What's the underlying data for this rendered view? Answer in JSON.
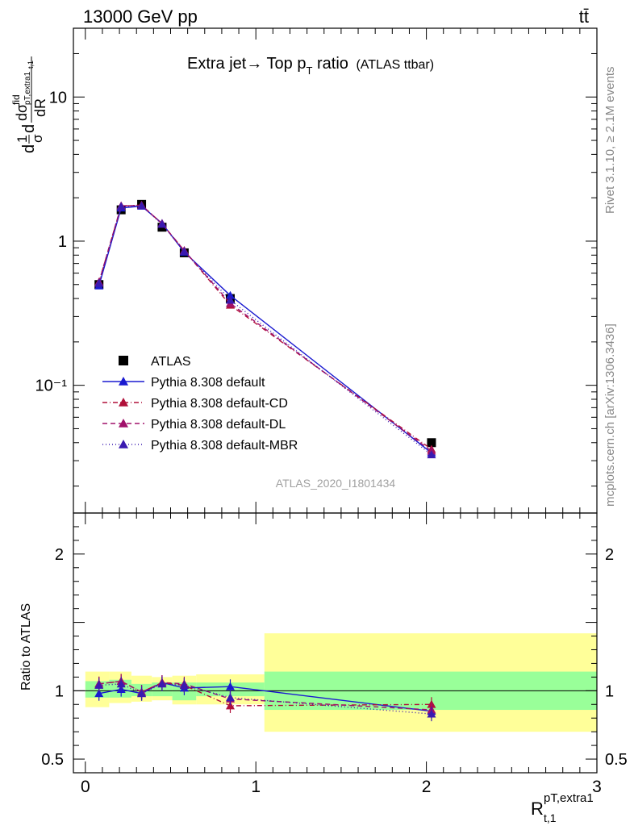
{
  "header": {
    "energy": "13000 GeV pp",
    "process": "tt̄",
    "watermark_rivet": "Rivet 3.1.10, ≥ 2.1M events",
    "watermark_site": "mcplots.cern.ch [arXiv:1306.3436]",
    "analysis_id": "ATLAS_2020_I1801434"
  },
  "title": {
    "main": "Extra jet→ Top p",
    "sub": "T",
    "rest": " ratio",
    "tag": "(ATLAS ttbar)"
  },
  "axes": {
    "ylabel_top": "d(1/σ) dσ^fid/dR / dR",
    "ylabel_ratio": "Ratio to ATLAS",
    "xlabel_main": "R",
    "xlabel_sup": "pT,extra1",
    "xlabel_sub": "t,1"
  },
  "chart_data": {
    "type": "line",
    "x": [
      0.08,
      0.21,
      0.33,
      0.45,
      0.58,
      0.85,
      2.03
    ],
    "bin_edges": [
      0.0,
      0.14,
      0.27,
      0.39,
      0.51,
      0.65,
      1.05,
      3.0
    ],
    "xlim": [
      -0.07,
      3.0
    ],
    "top": {
      "yscale": "log",
      "ylim": [
        0.013,
        30
      ],
      "yticks": [
        {
          "v": 0.1,
          "label": "10⁻¹"
        },
        {
          "v": 1,
          "label": "1"
        },
        {
          "v": 10,
          "label": "10"
        }
      ]
    },
    "ratio": {
      "ylim": [
        0.4,
        2.3
      ],
      "yticks": [
        0.5,
        1,
        2
      ],
      "band_inner": [
        [
          0.95,
          1.07
        ],
        [
          0.95,
          1.08
        ],
        [
          0.96,
          1.05
        ],
        [
          0.96,
          1.06
        ],
        [
          0.93,
          1.06
        ],
        [
          0.96,
          1.06
        ],
        [
          0.86,
          1.14
        ]
      ],
      "band_outer": [
        [
          0.88,
          1.14
        ],
        [
          0.91,
          1.14
        ],
        [
          0.92,
          1.11
        ],
        [
          0.93,
          1.1
        ],
        [
          0.9,
          1.11
        ],
        [
          0.9,
          1.12
        ],
        [
          0.7,
          1.42
        ]
      ]
    },
    "series": [
      {
        "name": "ATLAS",
        "color": "#000000",
        "marker": "square",
        "dash": "none",
        "values": [
          0.5,
          1.65,
          1.8,
          1.25,
          0.83,
          0.4,
          0.04
        ],
        "ratio": [
          1,
          1,
          1,
          1,
          1,
          1,
          1
        ]
      },
      {
        "name": "Pythia 8.308 default",
        "color": "#1a1ad0",
        "marker": "triangle",
        "dash": "solid",
        "values": [
          0.49,
          1.7,
          1.75,
          1.33,
          0.84,
          0.42,
          0.034
        ],
        "ratio": [
          0.98,
          1.01,
          0.98,
          1.06,
          1.02,
          1.03,
          0.85
        ]
      },
      {
        "name": "Pythia 8.308 default-CD",
        "color": "#b0103a",
        "marker": "triangle",
        "dash": "6,3,1,3",
        "values": [
          0.52,
          1.75,
          1.78,
          1.32,
          0.86,
          0.36,
          0.036
        ],
        "ratio": [
          1.05,
          1.07,
          0.99,
          1.06,
          1.04,
          0.89,
          0.9
        ]
      },
      {
        "name": "Pythia 8.308 default-DL",
        "color": "#a0106a",
        "marker": "triangle",
        "dash": "6,4",
        "values": [
          0.52,
          1.76,
          1.77,
          1.32,
          0.86,
          0.37,
          0.035
        ],
        "ratio": [
          1.05,
          1.07,
          0.99,
          1.06,
          1.05,
          0.94,
          0.86
        ]
      },
      {
        "name": "Pythia 8.308 default-MBR",
        "color": "#3a1ab0",
        "marker": "triangle",
        "dash": "1,3",
        "values": [
          0.51,
          1.74,
          1.76,
          1.31,
          0.85,
          0.39,
          0.033
        ],
        "ratio": [
          1.04,
          1.05,
          0.98,
          1.05,
          1.04,
          0.95,
          0.83
        ]
      }
    ]
  }
}
